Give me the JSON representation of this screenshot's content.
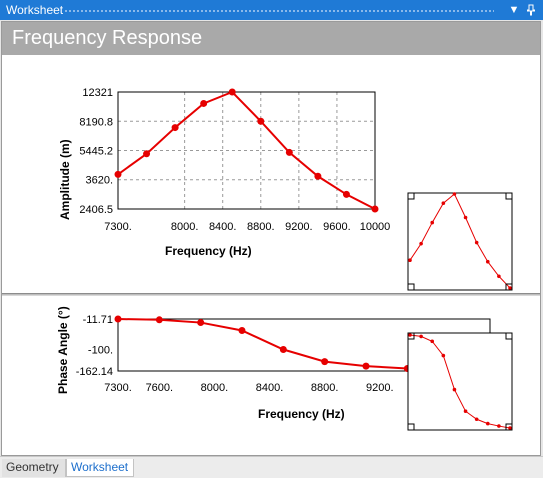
{
  "window": {
    "title": "Worksheet",
    "dropdown_icon": "▼",
    "pin_icon": "pin-icon"
  },
  "header": {
    "title": "Frequency Response"
  },
  "colors": {
    "series": "#e60000",
    "accent": "#1f7ad6"
  },
  "chart_data": [
    {
      "type": "line",
      "title": "",
      "xlabel": "Frequency (Hz)",
      "ylabel": "Amplitude (m)",
      "xlim": [
        7300,
        10000
      ],
      "ylim": [
        2406.5,
        12321
      ],
      "xticks": [
        "7300.",
        "8000.",
        "8400.",
        "8800.",
        "9200.",
        "9600.",
        "10000"
      ],
      "yticks": [
        "12321",
        "8190.8",
        "5445.2",
        "3620.",
        "2406.5"
      ],
      "grid": true,
      "series": [
        {
          "x": [
            7300,
            7600,
            7900,
            8200,
            8500,
            8800,
            9100,
            9400,
            9700,
            10000
          ],
          "y": [
            3900,
            5200,
            7500,
            10500,
            12321,
            8190.8,
            5300,
            3800,
            2950,
            2406.5
          ]
        }
      ]
    },
    {
      "type": "line",
      "title": "",
      "xlabel": "Frequency (Hz)",
      "ylabel": "Phase Angle (°)",
      "xlim": [
        7300,
        10000
      ],
      "ylim": [
        -162.14,
        -11.71
      ],
      "xticks": [
        "7300.",
        "7600.",
        "8000.",
        "8400.",
        "8800.",
        "9200."
      ],
      "yticks": [
        "-11.71",
        "-100.",
        "-162.14"
      ],
      "grid": false,
      "series": [
        {
          "x": [
            7300,
            7600,
            7900,
            8200,
            8500,
            8800,
            9100,
            9400,
            9700,
            10000
          ],
          "y": [
            -11.71,
            -14,
            -22,
            -45,
            -100,
            -135,
            -148,
            -155,
            -159,
            -162.14
          ]
        }
      ]
    }
  ],
  "tabs": [
    {
      "label": "Geometry"
    },
    {
      "label": "Worksheet"
    }
  ]
}
